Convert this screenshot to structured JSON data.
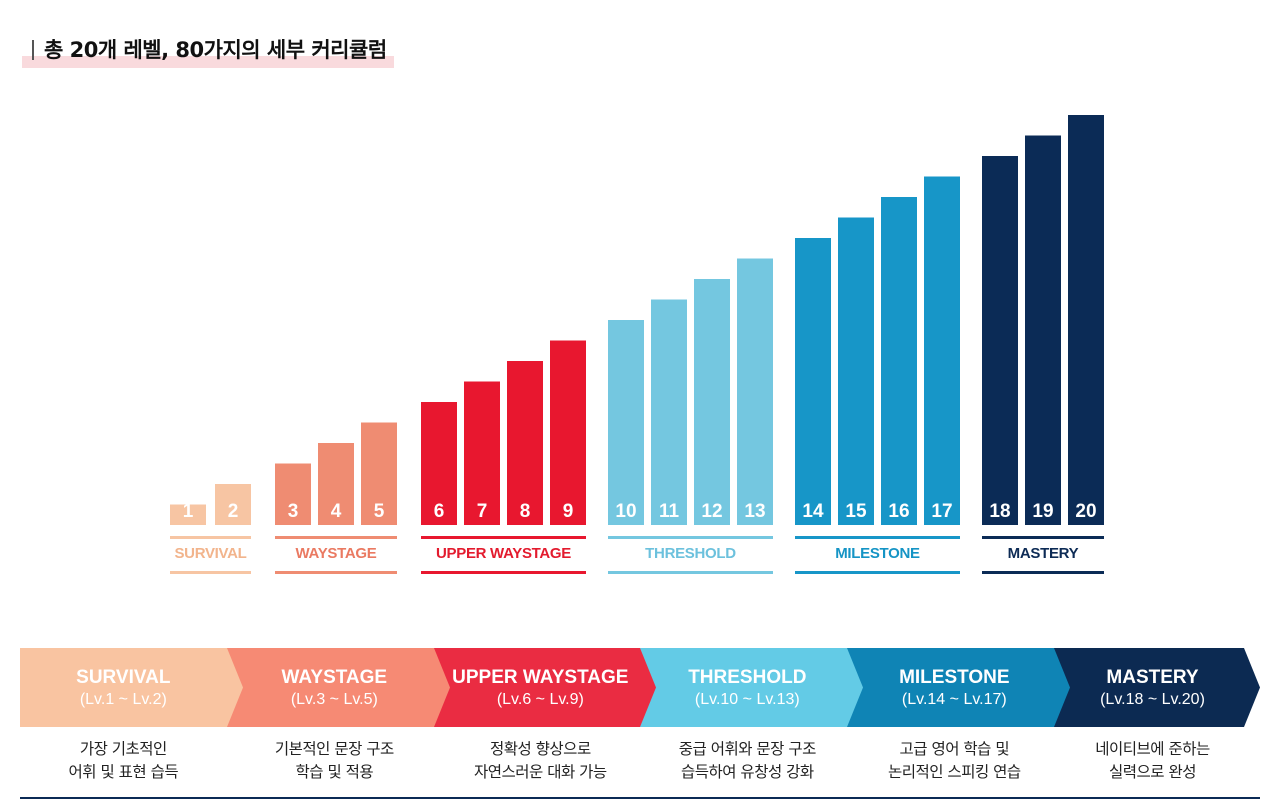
{
  "title": "총 20개 레벨, 80가지의 세부 커리큘럼",
  "chart_data": {
    "type": "bar",
    "title": "총 20개 레벨, 80가지의 세부 커리큘럼",
    "categories": [
      "1",
      "2",
      "3",
      "4",
      "5",
      "6",
      "7",
      "8",
      "9",
      "10",
      "11",
      "12",
      "13",
      "14",
      "15",
      "16",
      "17",
      "18",
      "19",
      "20"
    ],
    "values": [
      1,
      2,
      3,
      4,
      5,
      6,
      7,
      8,
      9,
      10,
      11,
      12,
      13,
      14,
      15,
      16,
      17,
      18,
      19,
      20
    ],
    "ylim": [
      0,
      21
    ],
    "groups": [
      {
        "name": "SURVIVAL",
        "levels": [
          1,
          2
        ],
        "color": "#f7c5a3",
        "label_color": "#f2b48c"
      },
      {
        "name": "WAYSTAGE",
        "levels": [
          3,
          4,
          5
        ],
        "color": "#ef8c72",
        "label_color": "#ea7a62"
      },
      {
        "name": "UPPER WAYSTAGE",
        "levels": [
          6,
          7,
          8,
          9
        ],
        "color": "#e8172f",
        "label_color": "#e31b2e"
      },
      {
        "name": "THRESHOLD",
        "levels": [
          10,
          11,
          12,
          13
        ],
        "color": "#74c7e0",
        "label_color": "#6cc1dd"
      },
      {
        "name": "MILESTONE",
        "levels": [
          14,
          15,
          16,
          17
        ],
        "color": "#1796c8",
        "label_color": "#1594c5"
      },
      {
        "name": "MASTERY",
        "levels": [
          18,
          19,
          20
        ],
        "color": "#0b2b56",
        "label_color": "#0d2b55"
      }
    ]
  },
  "steps": [
    {
      "name": "SURVIVAL",
      "range": "(Lv.1 ~ Lv.2)",
      "color": "#f9c4a1",
      "desc1": "가장 기초적인",
      "desc2": "어휘 및 표현 습득"
    },
    {
      "name": "WAYSTAGE",
      "range": "(Lv.3 ~ Lv.5)",
      "color": "#f68a74",
      "desc1": "기본적인 문장 구조",
      "desc2": "학습 및 적용"
    },
    {
      "name": "UPPER WAYSTAGE",
      "range": "(Lv.6 ~ Lv.9)",
      "color": "#ea2c42",
      "desc1": "정확성 향상으로",
      "desc2": "자연스러운 대화 가능"
    },
    {
      "name": "THRESHOLD",
      "range": "(Lv.10 ~ Lv.13)",
      "color": "#63cbe6",
      "desc1": "중급 어휘와 문장 구조",
      "desc2": "습득하여 유창성 강화"
    },
    {
      "name": "MILESTONE",
      "range": "(Lv.14 ~ Lv.17)",
      "color": "#0f84b5",
      "desc1": "고급 영어 학습 및",
      "desc2": "논리적인 스피킹 연습"
    },
    {
      "name": "MASTERY",
      "range": "(Lv.18 ~ Lv.20)",
      "color": "#0c2a52",
      "desc1": "네이티브에 준하는",
      "desc2": "실력으로 완성"
    }
  ]
}
